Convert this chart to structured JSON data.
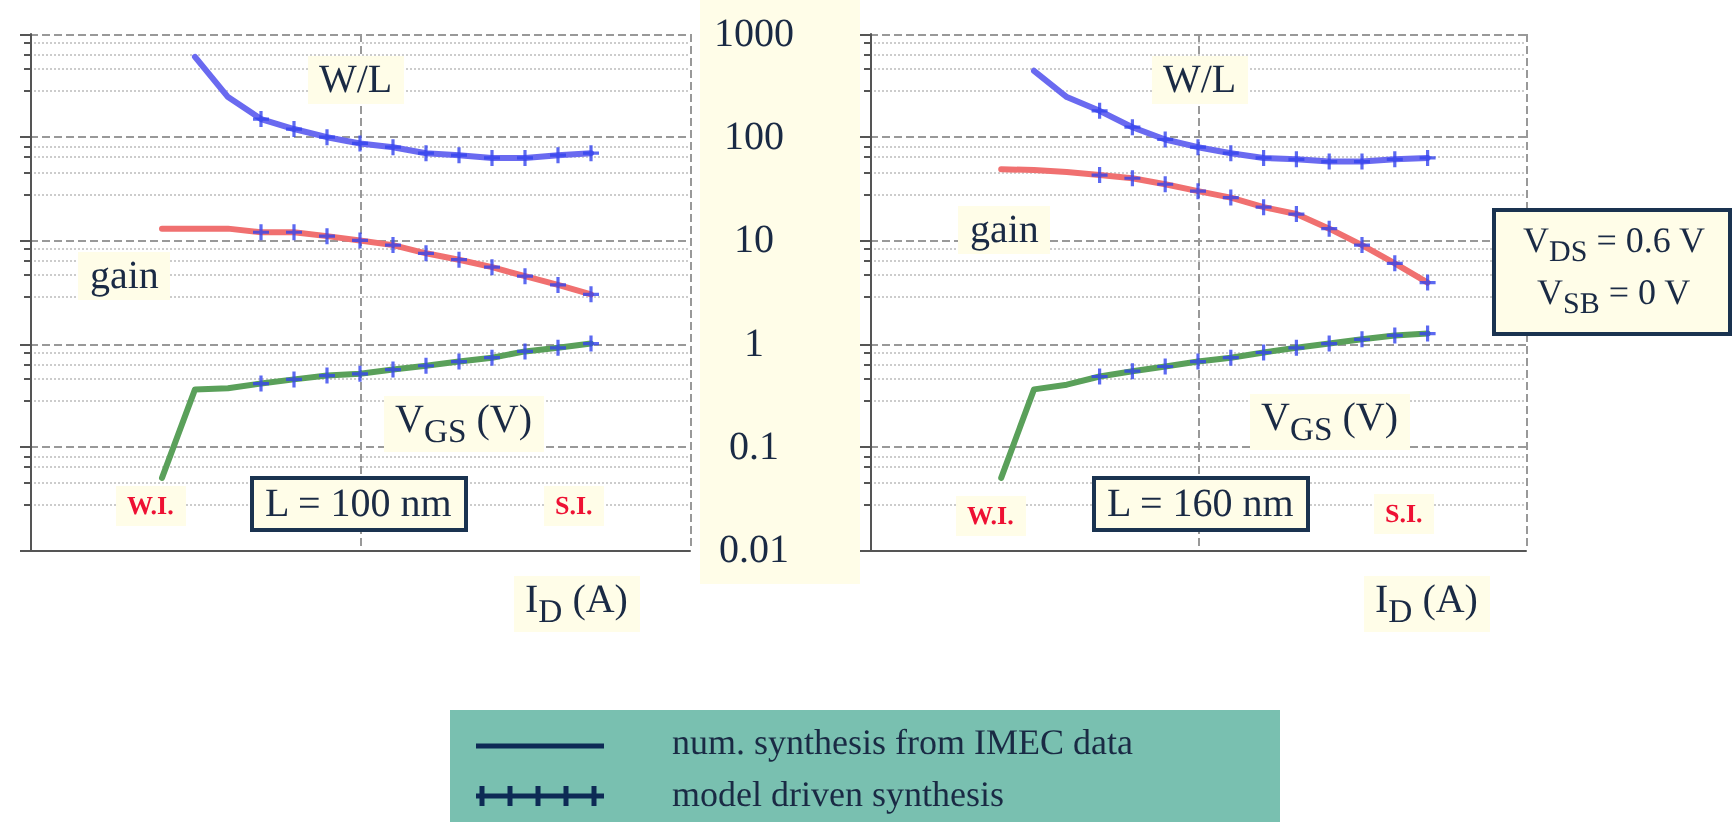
{
  "chart_data": [
    {
      "type": "line",
      "xlabel": "I$_{D}$ (A)",
      "categories": [
        null,
        null,
        null,
        null,
        null,
        null,
        null,
        null,
        null,
        null,
        null,
        null,
        null,
        null,
        null,
        null,
        null,
        null,
        null,
        null,
        null
      ],
      "series": [
        {
          "name": "W/L",
          "color": "#6a6af0",
          "values": [
            null,
            null,
            null,
            null,
            null,
            600,
            245,
            150,
            120,
            100,
            87,
            80,
            70,
            67,
            63,
            63,
            67,
            70,
            null,
            null,
            null
          ]
        },
        {
          "name": "gain",
          "color": "#f07070",
          "values": [
            null,
            null,
            null,
            null,
            13,
            13,
            13,
            12,
            12,
            11,
            10,
            9.0,
            7.5,
            6.5,
            5.5,
            4.5,
            3.7,
            3.0,
            null,
            null,
            null
          ]
        },
        {
          "name": "V$_{GS}$ (V)",
          "color": "#5aa05a",
          "values": [
            null,
            null,
            null,
            null,
            0.05,
            0.36,
            0.37,
            0.41,
            0.45,
            0.49,
            0.51,
            0.56,
            0.61,
            0.67,
            0.73,
            0.84,
            0.91,
            1.0,
            null,
            null,
            null
          ]
        },
        {
          "type": "scatter",
          "marker": "cross",
          "color": "#3344ee",
          "values": [
            null,
            null,
            null,
            null,
            null,
            null,
            null,
            150,
            120,
            100,
            87,
            80,
            70,
            67,
            63,
            63,
            67,
            70,
            null,
            null,
            null
          ]
        },
        {
          "type": "scatter",
          "marker": "cross",
          "color": "#3344ee",
          "values": [
            null,
            null,
            null,
            null,
            null,
            null,
            null,
            12,
            12,
            11,
            10,
            9.0,
            7.5,
            6.5,
            5.5,
            4.5,
            3.7,
            3.0,
            null,
            null,
            null
          ]
        },
        {
          "type": "scatter",
          "marker": "cross",
          "color": "#3344ee",
          "values": [
            null,
            null,
            null,
            null,
            null,
            null,
            null,
            0.41,
            0.45,
            0.49,
            0.51,
            0.56,
            0.61,
            0.67,
            0.73,
            0.84,
            0.91,
            1.0,
            null,
            null,
            null
          ]
        }
      ],
      "log": "y",
      "ylim": [
        0.01,
        1000
      ],
      "yticks": [
        0.01,
        0.1,
        1,
        10,
        100,
        1000
      ],
      "grid": true,
      "tick_labels": false,
      "annotations": [
        "W.I.",
        "S.I.",
        "L = 100 nm"
      ]
    },
    {
      "type": "line",
      "xlabel": "I$_{D}$ (A)",
      "categories": [
        null,
        null,
        null,
        null,
        null,
        null,
        null,
        null,
        null,
        null,
        null,
        null,
        null,
        null,
        null,
        null,
        null,
        null,
        null,
        null,
        null
      ],
      "series": [
        {
          "name": "W/L",
          "color": "#6a6af0",
          "values": [
            null,
            null,
            null,
            null,
            null,
            440,
            245,
            180,
            125,
            95,
            80,
            70,
            63,
            61,
            58,
            58,
            61,
            63,
            null,
            null,
            null
          ]
        },
        {
          "name": "gain",
          "color": "#f07070",
          "values": [
            null,
            null,
            null,
            null,
            49,
            48,
            46,
            43,
            40,
            35,
            30,
            26,
            21,
            18,
            13,
            9.0,
            6.0,
            3.9,
            null,
            null,
            null
          ]
        },
        {
          "name": "V$_{GS}$ (V)",
          "color": "#5aa05a",
          "values": [
            null,
            null,
            null,
            null,
            0.05,
            0.36,
            0.4,
            0.48,
            0.54,
            0.6,
            0.67,
            0.73,
            0.82,
            0.91,
            1.0,
            1.1,
            1.2,
            1.25,
            null,
            null,
            null
          ]
        },
        {
          "type": "scatter",
          "marker": "cross",
          "color": "#3344ee",
          "values": [
            null,
            null,
            null,
            null,
            null,
            null,
            null,
            180,
            125,
            95,
            80,
            70,
            63,
            61,
            58,
            58,
            61,
            63,
            null,
            null,
            null
          ]
        },
        {
          "type": "scatter",
          "marker": "cross",
          "color": "#3344ee",
          "values": [
            null,
            null,
            null,
            null,
            null,
            null,
            null,
            43,
            40,
            35,
            30,
            26,
            21,
            18,
            13,
            9.0,
            6.0,
            3.9,
            null,
            null,
            null
          ]
        },
        {
          "type": "scatter",
          "marker": "cross",
          "color": "#3344ee",
          "values": [
            null,
            null,
            null,
            null,
            null,
            null,
            null,
            0.48,
            0.54,
            0.6,
            0.67,
            0.73,
            0.82,
            0.91,
            1.0,
            1.1,
            1.2,
            1.25,
            null,
            null,
            null
          ]
        }
      ],
      "log": "y",
      "ylim": [
        0.01,
        1000
      ],
      "yticks": [
        0.01,
        0.1,
        1,
        10,
        100,
        1000
      ],
      "grid": true,
      "tick_labels": "y",
      "annotations": [
        "W.I.",
        "S.I.",
        "L = 160 nm",
        "V$_{DS}$ = 0.6 V",
        "V$_{SB}$ =  0 V",
        "num. synthesis from IMEC data",
        "model driven synthesis"
      ]
    }
  ]
}
